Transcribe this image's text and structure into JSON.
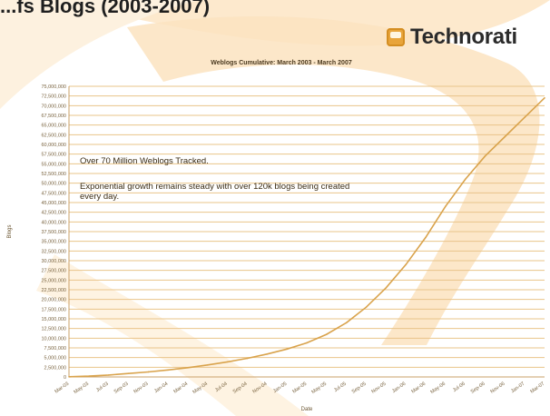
{
  "header": {
    "title": "...fs Blogs (2003-2007)"
  },
  "logo": {
    "name": "Technorati",
    "accent": "#e8a43a"
  },
  "colors": {
    "line": "#d9a34c",
    "grid": "#e9c48a",
    "background_swoosh": "#fbe3c0"
  },
  "chart_data": {
    "type": "line",
    "title": "Weblogs Cumulative: March 2003 - March 2007",
    "xlabel": "Date",
    "ylabel": "Blogs",
    "ylim": [
      0,
      75000000
    ],
    "grid": true,
    "x": [
      "Mar-03",
      "May-03",
      "Jul-03",
      "Sep-03",
      "Nov-03",
      "Jan-04",
      "Mar-04",
      "May-04",
      "Jul-04",
      "Sep-04",
      "Nov-04",
      "Jan-05",
      "Mar-05",
      "May-05",
      "Jul-05",
      "Sep-05",
      "Nov-05",
      "Jan-06",
      "Mar-06",
      "May-06",
      "Jul-06",
      "Sep-06",
      "Nov-06",
      "Jan-07",
      "Mar-07"
    ],
    "values": [
      50000,
      200000,
      500000,
      900000,
      1300000,
      1800000,
      2400000,
      3100000,
      3900000,
      4800000,
      5900000,
      7200000,
      8800000,
      11000000,
      14000000,
      18000000,
      23000000,
      29000000,
      36000000,
      44000000,
      51000000,
      57000000,
      62000000,
      67000000,
      72000000
    ],
    "annotations": [
      "Over 70 Million Weblogs Tracked.",
      "Exponential growth remains steady with over 120k blogs being created every day."
    ]
  }
}
